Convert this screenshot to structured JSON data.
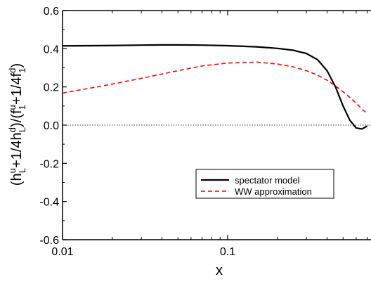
{
  "chart_data": {
    "type": "line",
    "xlabel": "x",
    "ylabel_parts": {
      "open": "(h",
      "h_sup_u": "u",
      "h_sub_L": "L",
      "plus_quarter_h": "+1/4h",
      "h_sup_d": "d",
      "h_sub_L2": "L",
      "close_div_f": ")/(f",
      "f_sup_u": "u",
      "f_sub_1": "1",
      "plus_quarter_f": "+1/4f",
      "f_sup_d": "d",
      "f_sub_1b": "1",
      "close": ")"
    },
    "x_scale": "log",
    "xlim": [
      0.01,
      0.7
    ],
    "ylim": [
      -0.6,
      0.6
    ],
    "x_ticks": [
      {
        "value": 0.01,
        "label": "0.01"
      },
      {
        "value": 0.1,
        "label": "0.1"
      }
    ],
    "y_ticks": [
      {
        "value": 0.6,
        "label": "0.6"
      },
      {
        "value": 0.4,
        "label": "0.4"
      },
      {
        "value": 0.2,
        "label": "0.2"
      },
      {
        "value": 0.0,
        "label": "0.0"
      },
      {
        "value": -0.2,
        "label": "-0.2"
      },
      {
        "value": -0.4,
        "label": "-0.4"
      },
      {
        "value": -0.6,
        "label": "-0.6"
      }
    ],
    "zero_line": true,
    "legend_position": "lower-right",
    "series": [
      {
        "name": "spectator model",
        "color": "#000000",
        "style": "solid",
        "x": [
          0.01,
          0.015,
          0.02,
          0.03,
          0.04,
          0.05,
          0.07,
          0.1,
          0.15,
          0.2,
          0.25,
          0.3,
          0.35,
          0.4,
          0.45,
          0.5,
          0.55,
          0.6,
          0.65,
          0.7
        ],
        "y": [
          0.415,
          0.416,
          0.417,
          0.419,
          0.42,
          0.42,
          0.419,
          0.416,
          0.41,
          0.402,
          0.392,
          0.375,
          0.343,
          0.285,
          0.2,
          0.1,
          0.025,
          -0.015,
          -0.02,
          -0.005
        ]
      },
      {
        "name": "WW approximation",
        "color": "#ff0000",
        "style": "dashed",
        "x": [
          0.01,
          0.015,
          0.02,
          0.03,
          0.05,
          0.07,
          0.1,
          0.15,
          0.2,
          0.25,
          0.3,
          0.35,
          0.4,
          0.45,
          0.5,
          0.55,
          0.6,
          0.65,
          0.7
        ],
        "y": [
          0.168,
          0.195,
          0.215,
          0.245,
          0.285,
          0.31,
          0.325,
          0.33,
          0.32,
          0.305,
          0.285,
          0.262,
          0.235,
          0.205,
          0.175,
          0.145,
          0.115,
          0.085,
          0.06
        ]
      }
    ]
  }
}
